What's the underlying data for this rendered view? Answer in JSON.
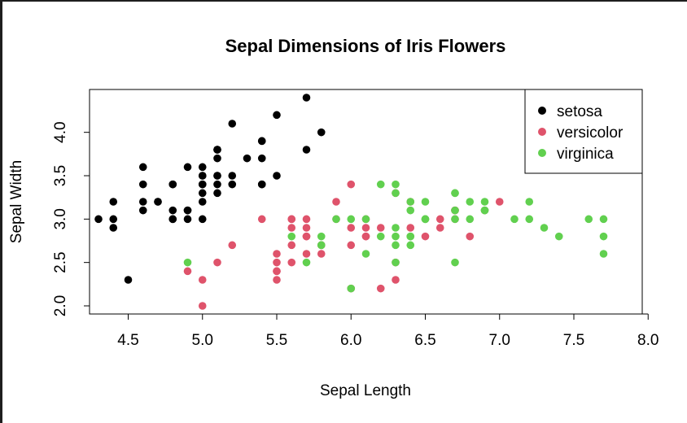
{
  "chart_data": {
    "type": "scatter",
    "title": "Sepal Dimensions of Iris Flowers",
    "xlabel": "Sepal Length",
    "ylabel": "Sepal Width",
    "xlim": [
      4.2,
      8.05
    ],
    "ylim": [
      1.9,
      4.5
    ],
    "xticks": [
      "4.5",
      "5.0",
      "5.5",
      "6.0",
      "6.5",
      "7.0",
      "7.5",
      "8.0"
    ],
    "yticks": [
      "2.0",
      "2.5",
      "3.0",
      "3.5",
      "4.0"
    ],
    "legend_position": "top-right",
    "grid": false,
    "series": [
      {
        "name": "setosa",
        "color": "#000000",
        "points": [
          [
            5.1,
            3.5
          ],
          [
            4.9,
            3.0
          ],
          [
            4.7,
            3.2
          ],
          [
            4.6,
            3.1
          ],
          [
            5.0,
            3.6
          ],
          [
            5.4,
            3.9
          ],
          [
            4.6,
            3.4
          ],
          [
            5.0,
            3.4
          ],
          [
            4.4,
            2.9
          ],
          [
            4.9,
            3.1
          ],
          [
            5.4,
            3.7
          ],
          [
            4.8,
            3.4
          ],
          [
            4.8,
            3.0
          ],
          [
            4.3,
            3.0
          ],
          [
            5.8,
            4.0
          ],
          [
            5.7,
            4.4
          ],
          [
            5.4,
            3.9
          ],
          [
            5.1,
            3.5
          ],
          [
            5.7,
            3.8
          ],
          [
            5.1,
            3.8
          ],
          [
            5.4,
            3.4
          ],
          [
            5.1,
            3.7
          ],
          [
            4.6,
            3.6
          ],
          [
            5.1,
            3.3
          ],
          [
            4.8,
            3.4
          ],
          [
            5.0,
            3.0
          ],
          [
            5.0,
            3.4
          ],
          [
            5.2,
            3.5
          ],
          [
            5.2,
            3.4
          ],
          [
            4.7,
            3.2
          ],
          [
            4.8,
            3.1
          ],
          [
            5.4,
            3.4
          ],
          [
            5.2,
            4.1
          ],
          [
            5.5,
            4.2
          ],
          [
            4.9,
            3.1
          ],
          [
            5.0,
            3.2
          ],
          [
            5.5,
            3.5
          ],
          [
            4.9,
            3.6
          ],
          [
            4.4,
            3.0
          ],
          [
            5.1,
            3.4
          ],
          [
            5.0,
            3.5
          ],
          [
            4.5,
            2.3
          ],
          [
            4.4,
            3.2
          ],
          [
            5.0,
            3.5
          ],
          [
            5.1,
            3.8
          ],
          [
            4.8,
            3.0
          ],
          [
            5.1,
            3.8
          ],
          [
            4.6,
            3.2
          ],
          [
            5.3,
            3.7
          ],
          [
            5.0,
            3.3
          ]
        ]
      },
      {
        "name": "versicolor",
        "color": "#DF536B",
        "points": [
          [
            7.0,
            3.2
          ],
          [
            6.4,
            3.2
          ],
          [
            6.9,
            3.1
          ],
          [
            5.5,
            2.3
          ],
          [
            6.5,
            2.8
          ],
          [
            5.7,
            2.8
          ],
          [
            6.3,
            3.3
          ],
          [
            4.9,
            2.4
          ],
          [
            6.6,
            2.9
          ],
          [
            5.2,
            2.7
          ],
          [
            5.0,
            2.0
          ],
          [
            5.9,
            3.0
          ],
          [
            6.0,
            2.2
          ],
          [
            6.1,
            2.9
          ],
          [
            5.6,
            2.9
          ],
          [
            6.7,
            3.1
          ],
          [
            5.6,
            3.0
          ],
          [
            5.8,
            2.7
          ],
          [
            6.2,
            2.2
          ],
          [
            5.6,
            2.5
          ],
          [
            5.9,
            3.2
          ],
          [
            6.1,
            2.8
          ],
          [
            6.3,
            2.5
          ],
          [
            6.1,
            2.8
          ],
          [
            6.4,
            2.9
          ],
          [
            6.6,
            3.0
          ],
          [
            6.8,
            2.8
          ],
          [
            6.7,
            3.0
          ],
          [
            6.0,
            2.9
          ],
          [
            5.7,
            2.6
          ],
          [
            5.5,
            2.4
          ],
          [
            5.5,
            2.4
          ],
          [
            5.8,
            2.7
          ],
          [
            6.0,
            2.7
          ],
          [
            5.4,
            3.0
          ],
          [
            6.0,
            3.4
          ],
          [
            6.7,
            3.1
          ],
          [
            6.3,
            2.3
          ],
          [
            5.6,
            3.0
          ],
          [
            5.5,
            2.5
          ],
          [
            5.5,
            2.6
          ],
          [
            6.1,
            3.0
          ],
          [
            5.8,
            2.6
          ],
          [
            5.0,
            2.3
          ],
          [
            5.6,
            2.7
          ],
          [
            5.7,
            3.0
          ],
          [
            5.7,
            2.9
          ],
          [
            6.2,
            2.9
          ],
          [
            5.1,
            2.5
          ],
          [
            5.7,
            2.8
          ]
        ]
      },
      {
        "name": "virginica",
        "color": "#61D04F",
        "points": [
          [
            6.3,
            3.3
          ],
          [
            5.8,
            2.7
          ],
          [
            7.1,
            3.0
          ],
          [
            6.3,
            2.9
          ],
          [
            6.5,
            3.0
          ],
          [
            7.6,
            3.0
          ],
          [
            4.9,
            2.5
          ],
          [
            7.3,
            2.9
          ],
          [
            6.7,
            2.5
          ],
          [
            7.2,
            3.6
          ],
          [
            6.5,
            3.2
          ],
          [
            6.4,
            2.7
          ],
          [
            6.8,
            3.0
          ],
          [
            5.7,
            2.5
          ],
          [
            5.8,
            2.8
          ],
          [
            6.4,
            3.2
          ],
          [
            6.5,
            3.0
          ],
          [
            7.7,
            3.8
          ],
          [
            7.7,
            2.6
          ],
          [
            6.0,
            2.2
          ],
          [
            6.9,
            3.2
          ],
          [
            5.6,
            2.8
          ],
          [
            7.7,
            2.8
          ],
          [
            6.3,
            2.7
          ],
          [
            6.7,
            3.3
          ],
          [
            7.2,
            3.2
          ],
          [
            6.2,
            2.8
          ],
          [
            6.1,
            3.0
          ],
          [
            6.4,
            2.8
          ],
          [
            7.2,
            3.0
          ],
          [
            7.4,
            2.8
          ],
          [
            7.9,
            3.8
          ],
          [
            6.4,
            2.8
          ],
          [
            6.3,
            2.8
          ],
          [
            6.1,
            2.6
          ],
          [
            7.7,
            3.0
          ],
          [
            6.3,
            3.4
          ],
          [
            6.4,
            3.1
          ],
          [
            6.0,
            3.0
          ],
          [
            6.9,
            3.1
          ],
          [
            6.7,
            3.1
          ],
          [
            6.9,
            3.1
          ],
          [
            5.8,
            2.7
          ],
          [
            6.8,
            3.2
          ],
          [
            6.7,
            3.3
          ],
          [
            6.7,
            3.0
          ],
          [
            6.3,
            2.5
          ],
          [
            6.5,
            3.0
          ],
          [
            6.2,
            3.4
          ],
          [
            5.9,
            3.0
          ]
        ]
      }
    ]
  }
}
